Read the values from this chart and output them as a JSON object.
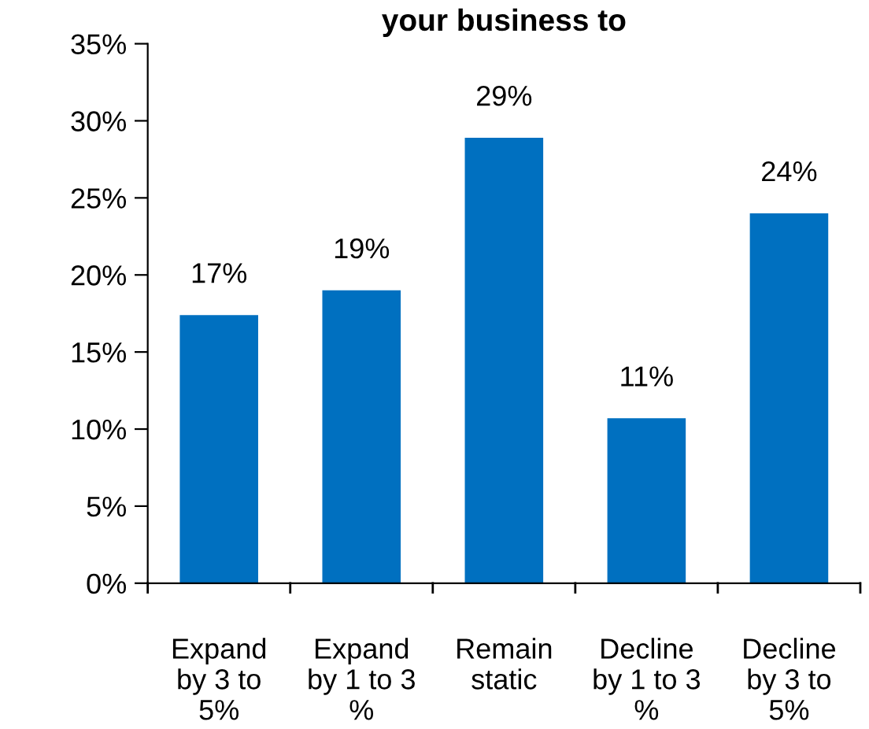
{
  "chart_data": {
    "type": "bar",
    "title": "your business to",
    "categories": [
      "Expand\nby 3 to\n5%",
      "Expand\nby 1 to 3\n%",
      "Remain\nstatic",
      "Decline\nby 1 to 3\n%",
      "Decline\nby 3 to\n5%"
    ],
    "values": [
      17.4,
      19,
      28.9,
      10.7,
      24
    ],
    "value_labels": [
      "17%",
      "19%",
      "29%",
      "11%",
      "24%"
    ],
    "color": "#0070c0",
    "ylim": [
      0,
      35
    ],
    "yticks": [
      {
        "value": 0,
        "label": "0%"
      },
      {
        "value": 5,
        "label": "5%"
      },
      {
        "value": 10,
        "label": "10%"
      },
      {
        "value": 15,
        "label": "15%"
      },
      {
        "value": 20,
        "label": "20%"
      },
      {
        "value": 25,
        "label": "25%"
      },
      {
        "value": 30,
        "label": "30%"
      },
      {
        "value": 35,
        "label": "35%"
      }
    ],
    "grid": false,
    "legend": false
  }
}
